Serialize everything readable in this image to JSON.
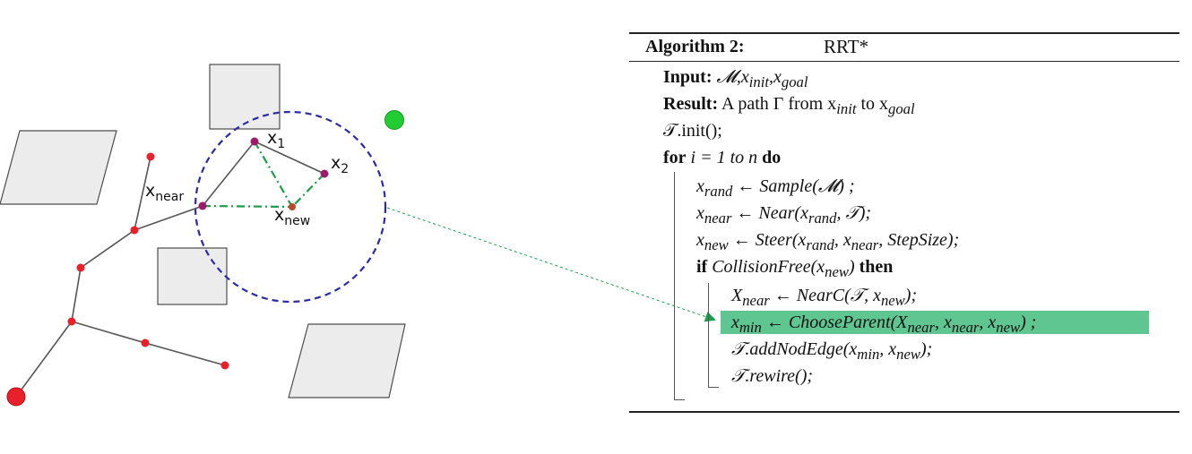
{
  "labels": {
    "x1": "x",
    "x1_sub": "1",
    "x2": "x",
    "x2_sub": "2",
    "xnear": "x",
    "xnear_sub": "near",
    "xnew": "x",
    "xnew_sub": "new"
  },
  "colors": {
    "obstacle_fill": "#ececec",
    "obstacle_stroke": "#4d4d4d",
    "tree_edge": "#555555",
    "node": "#e8202a",
    "node_new": "#9b1b6a",
    "goal": "#22cc33",
    "circle": "#2b2ba8",
    "dash_green": "#1a9e4a",
    "highlight": "#5fc691"
  },
  "algorithm": {
    "header": "Algorithm 2:",
    "name": "RRT*",
    "input_kw": "Input:",
    "input_text": "𝓜,x",
    "input_sub1": "init",
    "input_sep": ",x",
    "input_sub2": "goal",
    "result_kw": "Result:",
    "result_text": "A path Γ from x",
    "result_sub1": "init",
    "result_to": " to x",
    "result_sub2": "goal",
    "init_line": "𝒯.init();",
    "for_kw": "for",
    "for_text": " i = 1 ",
    "for_to": "to n",
    "for_do": " do",
    "l_rand_a": "x",
    "l_rand_sub": "rand",
    "l_rand_b": " ← Sample(𝓜) ;",
    "l_near_a": "x",
    "l_near_sub": "near",
    "l_near_b": " ← Near(x",
    "l_near_sub2": "rand",
    "l_near_c": ", 𝒯);",
    "l_new_a": "x",
    "l_new_sub": "new",
    "l_new_b": " ← Steer(x",
    "l_new_sub2": "rand",
    "l_new_c": ", x",
    "l_new_sub3": "near",
    "l_new_d": ", StepSize);",
    "if_kw": "if",
    "if_text": " CollisionFree(x",
    "if_sub": "new",
    "if_close": ")",
    "then_kw": " then",
    "l_Xnear_a": "X",
    "l_Xnear_sub": "near",
    "l_Xnear_b": " ← NearC(𝒯, x",
    "l_Xnear_sub2": "new",
    "l_Xnear_c": ");",
    "l_min_a": "x",
    "l_min_sub": "min",
    "l_min_b": " ← ChooseParent(X",
    "l_min_sub2": "near",
    "l_min_c": ", x",
    "l_min_sub3": "near",
    "l_min_d": ", x",
    "l_min_sub4": "new",
    "l_min_e": ") ;",
    "l_add_a": "𝒯.addNodEdge(x",
    "l_add_sub": "min",
    "l_add_b": ", x",
    "l_add_sub2": "new",
    "l_add_c": ");",
    "l_rewire": "𝒯.rewire();"
  }
}
